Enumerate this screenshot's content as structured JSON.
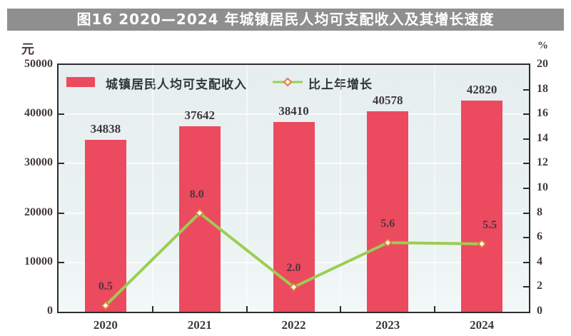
{
  "title": "图16 2020—2024 年城镇居民人均可支配收入及其增长速度",
  "units": {
    "left": "元",
    "right": "%"
  },
  "legend": {
    "income_label": "城镇居民人均可支配收入",
    "growth_label": "比上年增长"
  },
  "colors": {
    "title_bar_bg": "#8f8f8f",
    "title_text": "#ffffff",
    "bar": "#ec4a5f",
    "line": "#9ccd52",
    "marker_stroke": "#e0793a",
    "marker_fill": "#fffdf2",
    "plot_bg": "#e9f0f1",
    "plot_border": "#2e2c2c",
    "axis_text": "#453a3a"
  },
  "chart_data": {
    "type": "bar+line",
    "title": "图16 2020—2024 年城镇居民人均可支配收入及其增长速度",
    "categories": [
      "2020",
      "2021",
      "2022",
      "2023",
      "2024"
    ],
    "series": [
      {
        "name": "城镇居民人均可支配收入",
        "type": "bar",
        "axis": "left",
        "unit": "元",
        "values": [
          34838,
          37642,
          38410,
          40578,
          42820
        ],
        "labels": [
          "34838",
          "37642",
          "38410",
          "40578",
          "42820"
        ]
      },
      {
        "name": "比上年增长",
        "type": "line",
        "axis": "right",
        "unit": "%",
        "values": [
          0.5,
          8.0,
          2.0,
          5.6,
          5.5
        ],
        "labels": [
          "0.5",
          "8.0",
          "2.0",
          "5.6",
          "5.5"
        ]
      }
    ],
    "left_axis": {
      "unit": "元",
      "min": 0,
      "max": 50000,
      "tick_step": 10000,
      "tick_labels": [
        "0",
        "10000",
        "20000",
        "30000",
        "40000",
        "50000"
      ]
    },
    "right_axis": {
      "unit": "%",
      "min": 0,
      "max": 20,
      "tick_step": 2,
      "tick_labels": [
        "0",
        "2",
        "4",
        "6",
        "8",
        "10",
        "12",
        "14",
        "16",
        "18",
        "20"
      ]
    },
    "legend_position": "top-inside",
    "grid": "faint white gridlines on light blue plot background"
  }
}
